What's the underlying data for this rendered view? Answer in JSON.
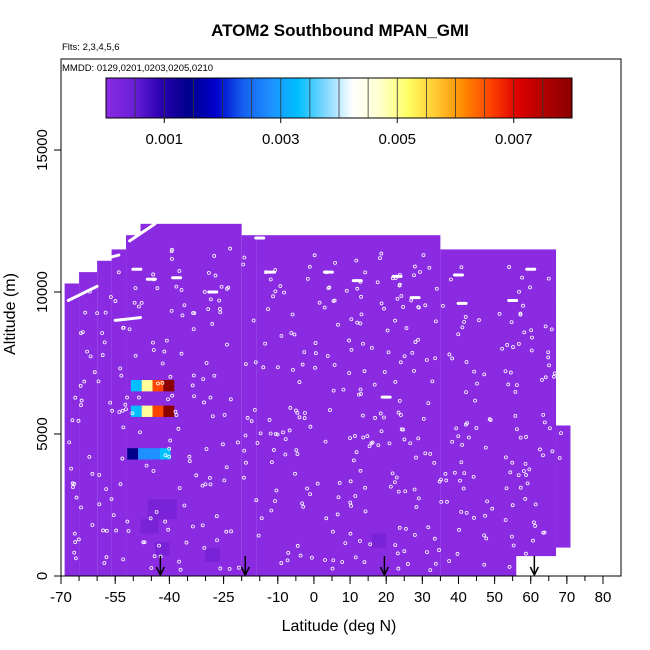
{
  "chart_data": {
    "type": "heatmap",
    "title": "ATOM2 Southbound MPAN_GMI",
    "flights_label": "Flts: 2,3,4,5,6",
    "dates_label": "MMDD: 0129,0201,0203,0205,0210",
    "xlabel": "Latitude (deg N)",
    "ylabel": "Altitude (m)",
    "xlim": [
      -70,
      80
    ],
    "ylim": [
      0,
      17500
    ],
    "x_ticks": [
      -70,
      -55,
      -40,
      -25,
      -10,
      0,
      10,
      20,
      30,
      40,
      50,
      60,
      70,
      80
    ],
    "x_tick_labels": [
      "-70",
      "-55",
      "-40",
      "-25",
      "-10",
      "0",
      "10",
      "20",
      "30",
      "40",
      "50",
      "60",
      "70",
      "80"
    ],
    "y_ticks": [
      0,
      5000,
      10000,
      15000
    ],
    "y_tick_labels": [
      "0",
      "5000",
      "10000",
      "15000"
    ],
    "colorbar": {
      "range": [
        0,
        0.008
      ],
      "ticks": [
        0.001,
        0.003,
        0.005,
        0.007
      ],
      "tick_labels": [
        "0.001",
        "0.003",
        "0.005",
        "0.007"
      ],
      "colors": [
        "#8a2be2",
        "#00008b",
        "#0000cd",
        "#1e90ff",
        "#00bfff",
        "#ffffff",
        "#ffff99",
        "#ffa500",
        "#ff4500",
        "#cc0000",
        "#8b0000"
      ]
    },
    "background_value_color": "#8a2be2",
    "flight_markers_lat": [
      -42.5,
      -19,
      19.5,
      61
    ],
    "column_top_altitudes": [
      {
        "lat_from": -69,
        "lat_to": -65,
        "alt": 10300
      },
      {
        "lat_from": -65,
        "lat_to": -60,
        "alt": 10700
      },
      {
        "lat_from": -60,
        "lat_to": -56,
        "alt": 11100
      },
      {
        "lat_from": -56,
        "lat_to": -52,
        "alt": 11500
      },
      {
        "lat_from": -52,
        "lat_to": -48,
        "alt": 12000
      },
      {
        "lat_from": -48,
        "lat_to": -20,
        "alt": 12400
      },
      {
        "lat_from": -20,
        "lat_to": -16,
        "alt": 12000
      },
      {
        "lat_from": -16,
        "lat_to": 35,
        "alt": 12000
      },
      {
        "lat_from": 35,
        "lat_to": 67,
        "alt": 11500
      }
    ],
    "column_bottom_altitudes": [
      {
        "lat_from": -69,
        "lat_to": 56,
        "alt": 0
      },
      {
        "lat_from": 56,
        "lat_to": 68,
        "alt": 700
      },
      {
        "lat_from": 68,
        "lat_to": 71,
        "alt": 1000
      }
    ],
    "highlight_cells": [
      {
        "lat": -49,
        "alt": 6700,
        "values": [
          0.0035,
          0.0048,
          0.0062,
          0.0075
        ]
      },
      {
        "lat": -49,
        "alt": 5800,
        "values": [
          0.0035,
          0.0048,
          0.0065,
          0.0078
        ]
      },
      {
        "lat": -50,
        "alt": 4300,
        "values": [
          0.0008,
          0.0022,
          0.0028,
          0.0031
        ]
      },
      {
        "lat": -46,
        "alt": 8200,
        "values": [
          0.0006
        ]
      }
    ]
  }
}
